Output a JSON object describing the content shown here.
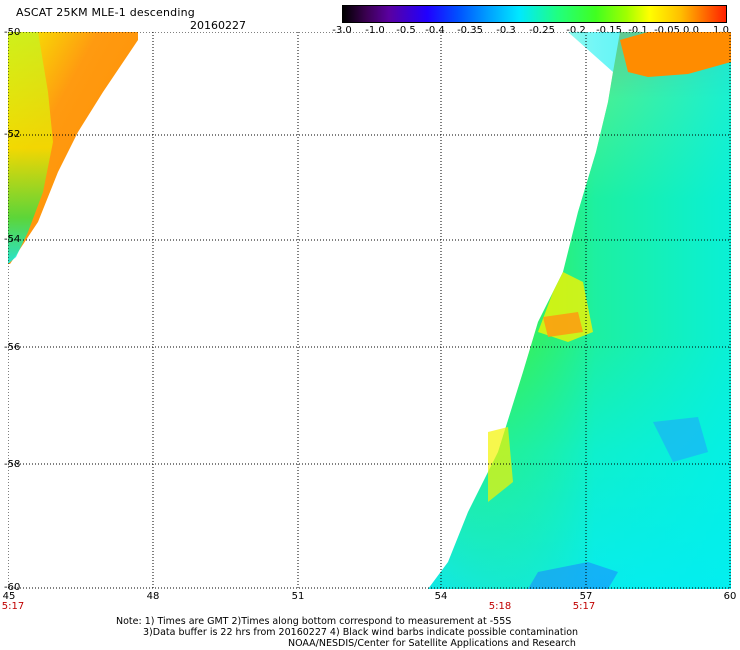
{
  "header": {
    "title": "ASCAT 25KM MLE-1 descending",
    "date": "20160227"
  },
  "colorbar": {
    "ticks": [
      "-3.0",
      "-1.0",
      "-0.5",
      "-0.4",
      "-0.35",
      "-0.3",
      "-0.25",
      "-0.2",
      "-0.15",
      "-0.1",
      "-0.05",
      "0.0",
      "1.0"
    ]
  },
  "axes": {
    "lat_labels": [
      "-50",
      "-52",
      "-54",
      "-56",
      "-58",
      "-60"
    ],
    "lon_labels": [
      "45",
      "48",
      "51",
      "54",
      "57",
      "60"
    ],
    "time_labels": [
      "5:17",
      "5:18",
      "5:17"
    ]
  },
  "notes": {
    "line1": "Note: 1) Times are GMT 2)Times along bottom correspond to measurement at -55S",
    "line2": "3)Data buffer is 22 hrs from 20160227 4) Black wind barbs indicate possible contamination",
    "line3": "NOAA/NESDIS/Center for Satellite Applications and Research"
  },
  "colors": {
    "orange": "#ff8c00",
    "yellow": "#f4f400",
    "green": "#40f040",
    "cyan": "#00f0f0",
    "blue": "#1a8cff",
    "time_label": "#c00000"
  }
}
